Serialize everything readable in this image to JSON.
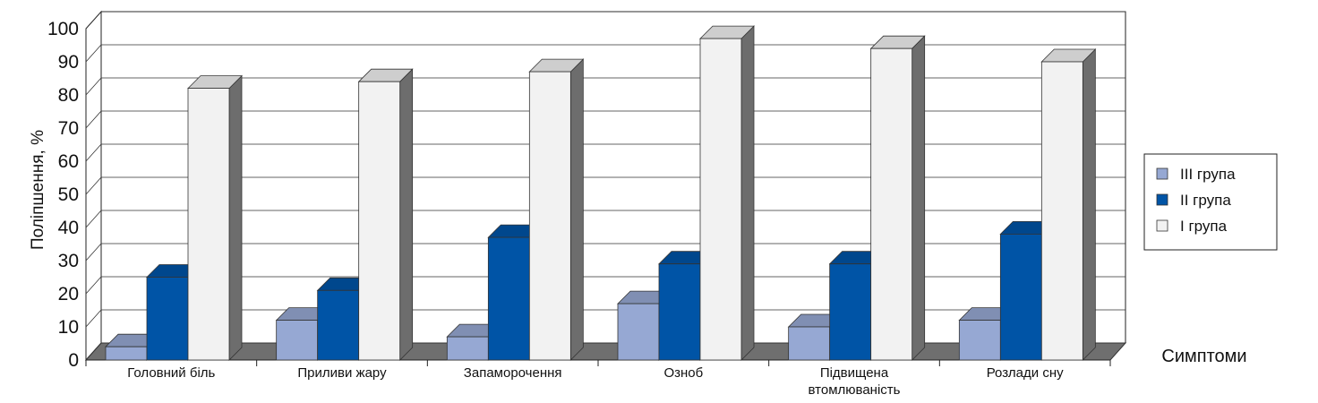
{
  "chart_data": {
    "type": "bar",
    "ylabel": "Поліпшення, %",
    "xlabel": "Симптоми",
    "ylim": [
      0,
      100
    ],
    "yticks": [
      0,
      10,
      20,
      30,
      40,
      50,
      60,
      70,
      80,
      90,
      100
    ],
    "grid": true,
    "legend_position": "right",
    "categories": [
      [
        "Головний біль"
      ],
      [
        "Приливи жару"
      ],
      [
        "Запаморочення"
      ],
      [
        "Озноб"
      ],
      [
        "Підвищена",
        "втомлюваність"
      ],
      [
        "Розлади сну"
      ]
    ],
    "series": [
      {
        "name": "III група",
        "color": "#96a8d3",
        "values": [
          4,
          12,
          7,
          17,
          10,
          12
        ]
      },
      {
        "name": "II група",
        "color": "#0054a6",
        "values": [
          25,
          21,
          37,
          29,
          29,
          38
        ]
      },
      {
        "name": "I група",
        "color": "#f2f2f2",
        "values": [
          82,
          84,
          87,
          97,
          94,
          90
        ]
      }
    ]
  }
}
